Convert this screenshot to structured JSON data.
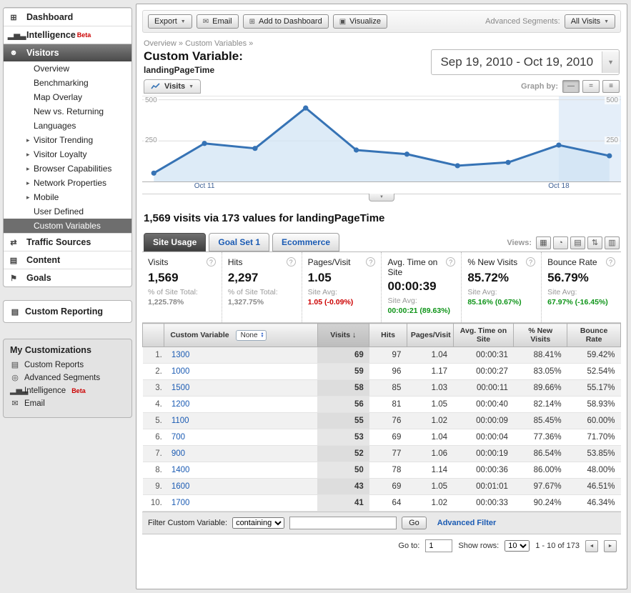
{
  "colors": {
    "link": "#1b5bb3",
    "positive": "#0e9418",
    "negative": "#cc0000",
    "chart_line": "#3673b5",
    "chart_fill": "#cfe2f4"
  },
  "icons": {
    "dropdown_arrow": "▼",
    "email_glyph": "✉",
    "add_glyph": "⊞",
    "visualize_glyph": "▣",
    "help_glyph": "?",
    "sort_desc": "↓",
    "select_up": "▲",
    "select_down": "▼",
    "slider_glyph": "▼",
    "prev_glyph": "◄",
    "next_glyph": "►",
    "graph_by": [
      "—",
      "=",
      "≡"
    ]
  },
  "sidebar": {
    "items": [
      {
        "label": "Dashboard",
        "glyph": "⊞",
        "cls": "top"
      },
      {
        "label": "Intelligence",
        "glyph": "▂▅▃",
        "cls": "top",
        "badge": "Beta"
      },
      {
        "label": "Visitors",
        "glyph": "☻",
        "cls": "hdr"
      },
      {
        "label": "Overview",
        "cls": "sub"
      },
      {
        "label": "Benchmarking",
        "cls": "sub"
      },
      {
        "label": "Map Overlay",
        "cls": "sub"
      },
      {
        "label": "New vs. Returning",
        "cls": "sub"
      },
      {
        "label": "Languages",
        "cls": "sub"
      },
      {
        "label": "Visitor Trending",
        "cls": "sub",
        "arrow": "▸"
      },
      {
        "label": "Visitor Loyalty",
        "cls": "sub",
        "arrow": "▸"
      },
      {
        "label": "Browser Capabilities",
        "cls": "sub",
        "arrow": "▸"
      },
      {
        "label": "Network Properties",
        "cls": "sub",
        "arrow": "▸"
      },
      {
        "label": "Mobile",
        "cls": "sub",
        "arrow": "▸"
      },
      {
        "label": "User Defined",
        "cls": "sub"
      },
      {
        "label": "Custom Variables",
        "cls": "subactive"
      },
      {
        "label": "Traffic Sources",
        "glyph": "⇄",
        "cls": "top"
      },
      {
        "label": "Content",
        "glyph": "▤",
        "cls": "top"
      },
      {
        "label": "Goals",
        "glyph": "⚑",
        "cls": "top"
      }
    ],
    "custom_reporting": {
      "label": "Custom Reporting",
      "glyph": "▤"
    },
    "my_customizations": {
      "title": "My Customizations",
      "items": [
        {
          "label": "Custom Reports",
          "glyph": "▤"
        },
        {
          "label": "Advanced Segments",
          "glyph": "◎"
        },
        {
          "label": "Intelligence",
          "glyph": "▂▅▃",
          "badge": "Beta"
        },
        {
          "label": "Email",
          "glyph": "✉"
        }
      ]
    }
  },
  "toolbar": {
    "export": "Export",
    "email": "Email",
    "add_to_dashboard": "Add to Dashboard",
    "visualize": "Visualize",
    "advanced_segments_label": "Advanced Segments:",
    "segment": "All Visits"
  },
  "breadcrumb": {
    "text": "Overview » Custom Variables »"
  },
  "header": {
    "title": "Custom Variable:",
    "subtitle": "landingPageTime",
    "date_range": "Sep 19, 2010 - Oct 19, 2010"
  },
  "chart": {
    "metric": "Visits",
    "graph_by_label": "Graph by:",
    "y_tick_top": "500",
    "y_tick_mid": "250"
  },
  "chart_data": {
    "type": "line",
    "series_name": "Visits",
    "x_labels": [
      "",
      "Oct 11",
      "",
      "",
      "",
      "",
      "",
      "",
      "Oct 18",
      ""
    ],
    "values": [
      55,
      235,
      205,
      450,
      195,
      170,
      100,
      120,
      225,
      160
    ],
    "ylim": [
      0,
      520
    ],
    "yticks": [
      250,
      500
    ],
    "grid": true,
    "legend_position": "none"
  },
  "headline": {
    "text": "1,569 visits via 173 values for landingPageTime"
  },
  "tabs": {
    "items": [
      {
        "label": "Site Usage",
        "cls": "active"
      },
      {
        "label": "Goal Set 1"
      },
      {
        "label": "Ecommerce"
      }
    ],
    "views_label": "Views:",
    "views": [
      {
        "name": "table-view",
        "glyph": "▦"
      },
      {
        "name": "percentage-view",
        "glyph": "◔"
      },
      {
        "name": "performance-view",
        "glyph": "▤"
      },
      {
        "name": "comparison-view",
        "glyph": "⇅"
      },
      {
        "name": "pivot-view",
        "glyph": "▥"
      }
    ]
  },
  "scorecard": [
    {
      "label": "Visits",
      "value": "1,569",
      "sub_label": "% of Site Total:",
      "sub_value": "1,225.78%",
      "trend": ""
    },
    {
      "label": "Hits",
      "value": "2,297",
      "sub_label": "% of Site Total:",
      "sub_value": "1,327.75%",
      "trend": ""
    },
    {
      "label": "Pages/Visit",
      "value": "1.05",
      "sub_label": "Site Avg:",
      "sub_value": "1.05 (-0.09%)",
      "trend": "negative"
    },
    {
      "label": "Avg. Time on Site",
      "value": "00:00:39",
      "sub_label": "Site Avg:",
      "sub_value": "00:00:21 (89.63%)",
      "trend": "positive"
    },
    {
      "label": "% New Visits",
      "value": "85.72%",
      "sub_label": "Site Avg:",
      "sub_value": "85.16% (0.67%)",
      "trend": "positive"
    },
    {
      "label": "Bounce Rate",
      "value": "56.79%",
      "sub_label": "Site Avg:",
      "sub_value": "67.97% (-16.45%)",
      "trend": "positive"
    }
  ],
  "table": {
    "headers": {
      "custom_variable": "Custom Variable",
      "secondary": "None",
      "visits": "Visits",
      "hits": "Hits",
      "pages_per_visit": "Pages/Visit",
      "avg_time": "Avg. Time on Site",
      "pct_new": "% New Visits",
      "bounce": "Bounce Rate"
    },
    "rows": [
      [
        "1.",
        "1300",
        "69",
        "97",
        "1.04",
        "00:00:31",
        "88.41%",
        "59.42%"
      ],
      [
        "2.",
        "1000",
        "59",
        "96",
        "1.17",
        "00:00:27",
        "83.05%",
        "52.54%"
      ],
      [
        "3.",
        "1500",
        "58",
        "85",
        "1.03",
        "00:00:11",
        "89.66%",
        "55.17%"
      ],
      [
        "4.",
        "1200",
        "56",
        "81",
        "1.05",
        "00:00:40",
        "82.14%",
        "58.93%"
      ],
      [
        "5.",
        "1100",
        "55",
        "76",
        "1.02",
        "00:00:09",
        "85.45%",
        "60.00%"
      ],
      [
        "6.",
        "700",
        "53",
        "69",
        "1.04",
        "00:00:04",
        "77.36%",
        "71.70%"
      ],
      [
        "7.",
        "900",
        "52",
        "77",
        "1.06",
        "00:00:19",
        "86.54%",
        "53.85%"
      ],
      [
        "8.",
        "1400",
        "50",
        "78",
        "1.14",
        "00:00:36",
        "86.00%",
        "48.00%"
      ],
      [
        "9.",
        "1600",
        "43",
        "69",
        "1.05",
        "00:01:01",
        "97.67%",
        "46.51%"
      ],
      [
        "10.",
        "1700",
        "41",
        "64",
        "1.02",
        "00:00:33",
        "90.24%",
        "46.34%"
      ]
    ]
  },
  "filter": {
    "label": "Filter Custom Variable:",
    "match_type": "containing",
    "query": "",
    "go": "Go",
    "advanced": "Advanced Filter"
  },
  "pagination": {
    "goto_label": "Go to:",
    "goto_value": "1",
    "rows_label": "Show rows:",
    "rows_value": "10",
    "range": "1 - 10 of 173"
  }
}
